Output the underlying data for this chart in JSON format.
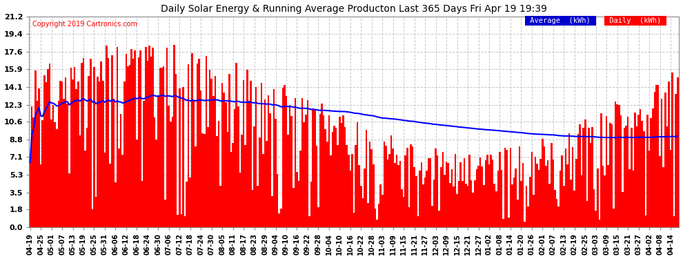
{
  "title": "Daily Solar Energy & Running Average Producton Last 365 Days Fri Apr 19 19:39",
  "copyright": "Copyright 2019 Cartronics.com",
  "yticks": [
    0.0,
    1.8,
    3.5,
    5.3,
    7.1,
    8.8,
    10.6,
    12.3,
    14.1,
    15.9,
    17.6,
    19.4,
    21.2
  ],
  "ymax": 21.2,
  "ymin": 0.0,
  "bar_color": "#FF0000",
  "avg_color": "#0000FF",
  "bg_color": "#FFFFFF",
  "grid_color": "#C8C8C8",
  "legend_avg_bg": "#0000CC",
  "legend_daily_bg": "#FF0000",
  "xtick_labels": [
    "04-19",
    "04-25",
    "05-01",
    "05-07",
    "05-13",
    "05-19",
    "05-25",
    "05-31",
    "06-06",
    "06-12",
    "06-18",
    "06-24",
    "06-30",
    "07-06",
    "07-12",
    "07-18",
    "07-24",
    "07-30",
    "08-05",
    "08-11",
    "08-17",
    "08-23",
    "08-29",
    "09-04",
    "09-10",
    "09-16",
    "09-22",
    "09-28",
    "10-04",
    "10-10",
    "10-16",
    "10-22",
    "10-28",
    "11-03",
    "11-09",
    "11-15",
    "11-21",
    "11-27",
    "12-03",
    "12-09",
    "12-15",
    "12-21",
    "12-27",
    "01-02",
    "01-08",
    "01-14",
    "01-20",
    "01-26",
    "02-01",
    "02-07",
    "02-13",
    "02-19",
    "02-25",
    "03-03",
    "03-09",
    "03-15",
    "03-21",
    "03-27",
    "04-02",
    "04-08",
    "04-14"
  ],
  "n_days": 365
}
